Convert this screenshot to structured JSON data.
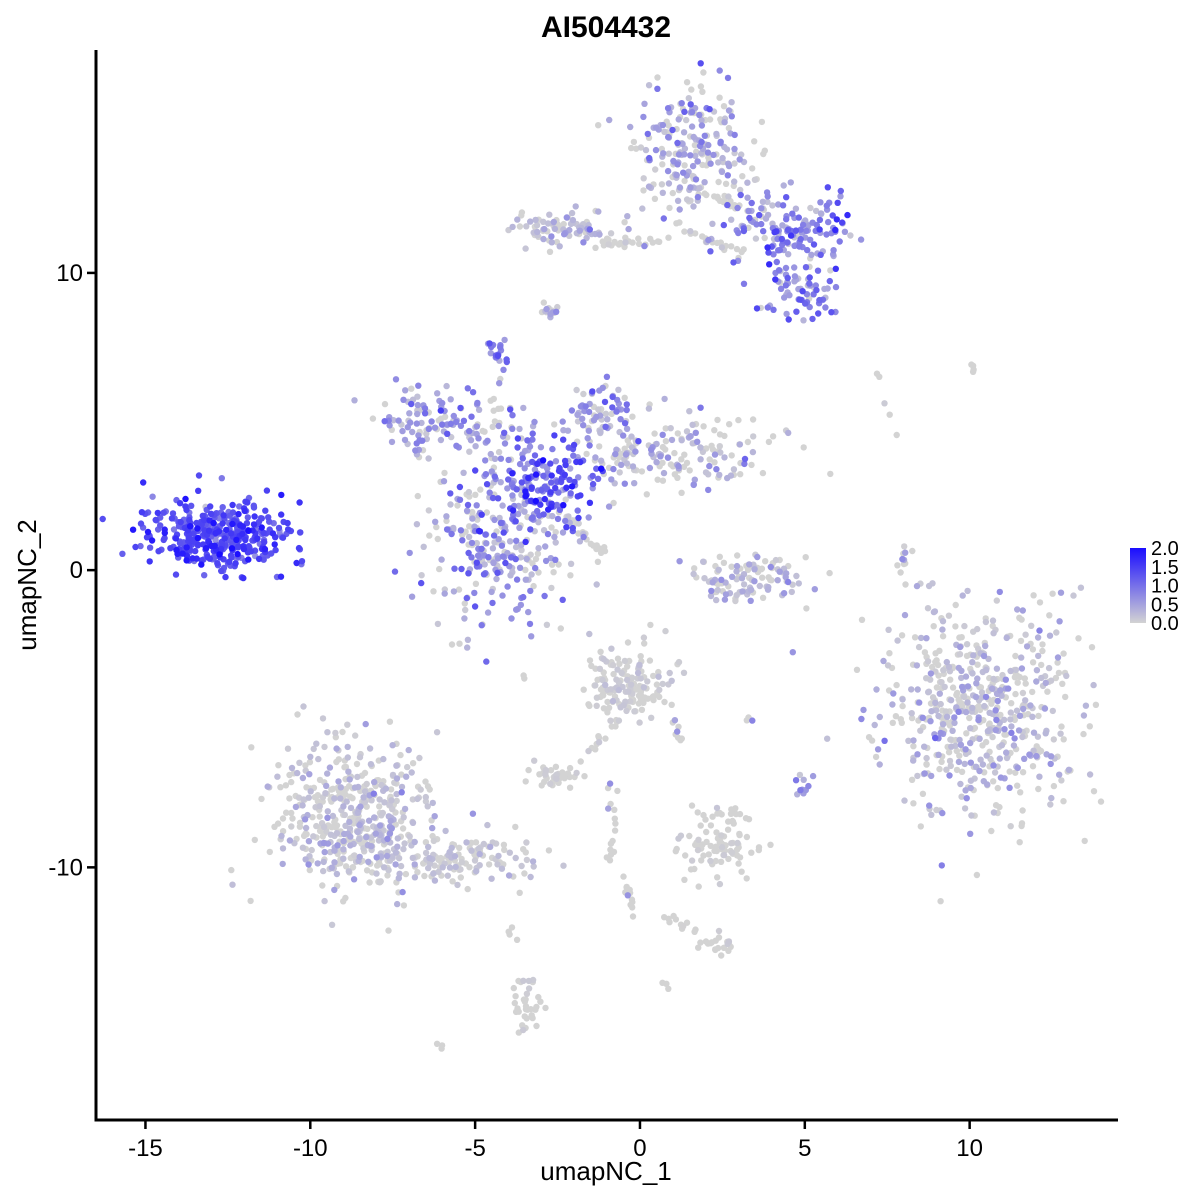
{
  "chart_data": {
    "type": "scatter",
    "title": "AI504432",
    "xlabel": "umapNC_1",
    "ylabel": "umapNC_2",
    "xlim": [
      -16.5,
      14.5
    ],
    "ylim": [
      -18.5,
      17.5
    ],
    "x_ticks": [
      -15,
      -10,
      -5,
      0,
      5,
      10
    ],
    "x_tick_labels": [
      "-15",
      "-10",
      "-5",
      "0",
      "5",
      "10"
    ],
    "y_ticks": [
      -10,
      0,
      10
    ],
    "y_tick_labels": [
      "-10",
      "0",
      "10"
    ],
    "grid": false,
    "legend_position": "right",
    "color_scale": {
      "low_color": "#d3d3d3",
      "high_color": "#1a0dff",
      "min": 0.0,
      "max": 2.0,
      "ticks": [
        2.0,
        1.5,
        1.0,
        0.5,
        0.0
      ],
      "tick_labels": [
        "2.0",
        "1.5",
        "1.0",
        "0.5",
        "0.0"
      ]
    },
    "clusters": [
      {
        "name": "c1",
        "cx": -12.8,
        "cy": 1.2,
        "sx": 1.1,
        "sy": 0.6,
        "n": 380,
        "expr_mean": 1.35,
        "expr_sd": 0.3
      },
      {
        "name": "c2",
        "cx": -4.2,
        "cy": 0.8,
        "sx": 1.2,
        "sy": 1.4,
        "n": 280,
        "expr_mean": 0.35,
        "expr_sd": 0.45
      },
      {
        "name": "c3",
        "cx": -2.9,
        "cy": 3.0,
        "sx": 0.9,
        "sy": 0.7,
        "n": 170,
        "expr_mean": 1.05,
        "expr_sd": 0.4
      },
      {
        "name": "c4",
        "cx": -6.2,
        "cy": 5.0,
        "sx": 1.2,
        "sy": 0.6,
        "n": 130,
        "expr_mean": 0.45,
        "expr_sd": 0.4
      },
      {
        "name": "c5",
        "cx": -1.0,
        "cy": 5.2,
        "sx": 0.6,
        "sy": 0.6,
        "n": 70,
        "expr_mean": 0.5,
        "expr_sd": 0.45
      },
      {
        "name": "c6",
        "cx": 1.3,
        "cy": 4.0,
        "sx": 1.6,
        "sy": 0.6,
        "n": 150,
        "expr_mean": 0.12,
        "expr_sd": 0.3
      },
      {
        "name": "c7",
        "cx": 1.6,
        "cy": 14.0,
        "sx": 0.9,
        "sy": 1.2,
        "n": 230,
        "expr_mean": 0.25,
        "expr_sd": 0.4
      },
      {
        "name": "c8",
        "cx": 4.6,
        "cy": 11.4,
        "sx": 0.9,
        "sy": 0.6,
        "n": 140,
        "expr_mean": 0.7,
        "expr_sd": 0.45
      },
      {
        "name": "c9",
        "cx": -2.5,
        "cy": 11.5,
        "sx": 0.8,
        "sy": 0.3,
        "n": 80,
        "expr_mean": 0.12,
        "expr_sd": 0.3
      },
      {
        "name": "c10",
        "cx": 4.8,
        "cy": 9.3,
        "sx": 0.6,
        "sy": 0.5,
        "n": 70,
        "expr_mean": 0.7,
        "expr_sd": 0.4
      },
      {
        "name": "c11",
        "cx": 3.2,
        "cy": -0.3,
        "sx": 0.9,
        "sy": 0.45,
        "n": 110,
        "expr_mean": 0.1,
        "expr_sd": 0.3
      },
      {
        "name": "c12",
        "cx": 10.4,
        "cy": -4.8,
        "sx": 1.5,
        "sy": 1.8,
        "n": 560,
        "expr_mean": 0.1,
        "expr_sd": 0.3
      },
      {
        "name": "c13",
        "cx": -8.6,
        "cy": -8.3,
        "sx": 1.2,
        "sy": 1.2,
        "n": 480,
        "expr_mean": 0.07,
        "expr_sd": 0.25
      },
      {
        "name": "c14",
        "cx": -5.5,
        "cy": -9.7,
        "sx": 1.2,
        "sy": 0.45,
        "n": 130,
        "expr_mean": 0.03,
        "expr_sd": 0.15
      },
      {
        "name": "c15",
        "cx": -0.4,
        "cy": -3.8,
        "sx": 0.6,
        "sy": 0.6,
        "n": 160,
        "expr_mean": 0.02,
        "expr_sd": 0.1
      },
      {
        "name": "c16",
        "cx": 2.3,
        "cy": -9.2,
        "sx": 0.6,
        "sy": 0.6,
        "n": 90,
        "expr_mean": 0.0,
        "expr_sd": 0.05
      },
      {
        "name": "c17",
        "cx": -2.5,
        "cy": -6.9,
        "sx": 0.4,
        "sy": 0.2,
        "n": 40,
        "expr_mean": 0.0,
        "expr_sd": 0.05
      },
      {
        "name": "c18",
        "cx": -3.4,
        "cy": -14.8,
        "sx": 0.25,
        "sy": 0.5,
        "n": 35,
        "expr_mean": 0.0,
        "expr_sd": 0.05
      },
      {
        "name": "c19",
        "cx": -4.3,
        "cy": 7.3,
        "sx": 0.15,
        "sy": 0.2,
        "n": 18,
        "expr_mean": 0.9,
        "expr_sd": 0.3
      },
      {
        "name": "c20",
        "cx": 2.3,
        "cy": -12.6,
        "sx": 0.3,
        "sy": 0.15,
        "n": 20,
        "expr_mean": 0.0,
        "expr_sd": 0.05
      },
      {
        "name": "c21",
        "cx": -2.7,
        "cy": 8.7,
        "sx": 0.15,
        "sy": 0.15,
        "n": 10,
        "expr_mean": 0.2,
        "expr_sd": 0.3
      },
      {
        "name": "c22",
        "cx": 5.0,
        "cy": -7.3,
        "sx": 0.15,
        "sy": 0.15,
        "n": 10,
        "expr_mean": 0.7,
        "expr_sd": 0.4
      }
    ],
    "streams": [
      {
        "from": [
          -4.5,
          3.0
        ],
        "to": [
          -4.3,
          6.8
        ],
        "n": 14
      },
      {
        "from": [
          -2.3,
          1.8
        ],
        "to": [
          -1.2,
          0.6
        ],
        "n": 22
      },
      {
        "from": [
          -0.9,
          3.6
        ],
        "to": [
          -0.2,
          4.3
        ],
        "n": 10
      },
      {
        "from": [
          -1.2,
          11.0
        ],
        "to": [
          0.9,
          11.0
        ],
        "n": 26
      },
      {
        "from": [
          1.3,
          11.5
        ],
        "to": [
          3.2,
          10.6
        ],
        "n": 22
      },
      {
        "from": [
          2.1,
          12.6
        ],
        "to": [
          3.9,
          12.0
        ],
        "n": 18
      },
      {
        "from": [
          -0.6,
          -5.0
        ],
        "to": [
          -1.6,
          -6.2
        ],
        "n": 12
      },
      {
        "from": [
          -0.8,
          -6.8
        ],
        "to": [
          -0.9,
          -10.0
        ],
        "n": 16
      },
      {
        "from": [
          -0.5,
          -10.2
        ],
        "to": [
          -0.1,
          -11.8
        ],
        "n": 12
      },
      {
        "from": [
          0.6,
          -11.6
        ],
        "to": [
          1.9,
          -12.2
        ],
        "n": 12
      },
      {
        "from": [
          1.0,
          -4.8
        ],
        "to": [
          1.3,
          -5.8
        ],
        "n": 8
      },
      {
        "from": [
          3.0,
          -7.8
        ],
        "to": [
          2.8,
          -8.6
        ],
        "n": 6
      },
      {
        "from": [
          -3.9,
          -12.0
        ],
        "to": [
          -3.8,
          -12.6
        ],
        "n": 4
      },
      {
        "from": [
          8.1,
          0.9
        ],
        "to": [
          7.8,
          -0.4
        ],
        "n": 10
      },
      {
        "from": [
          7.1,
          6.9
        ],
        "to": [
          7.8,
          4.6
        ],
        "n": 5
      },
      {
        "from": [
          9.9,
          7.0
        ],
        "to": [
          10.1,
          6.6
        ],
        "n": 4
      },
      {
        "from": [
          -2.8,
          9.2
        ],
        "to": [
          -2.7,
          8.5
        ],
        "n": 5
      },
      {
        "from": [
          -6.1,
          -16.0
        ],
        "to": [
          -6.0,
          -15.9
        ],
        "n": 3
      },
      {
        "from": [
          3.2,
          -4.9
        ],
        "to": [
          3.4,
          -4.9
        ],
        "n": 3
      },
      {
        "from": [
          0.7,
          -14.0
        ],
        "to": [
          0.8,
          -14.0
        ],
        "n": 3
      },
      {
        "from": [
          9.0,
          -4.2
        ],
        "to": [
          9.2,
          -5.4
        ],
        "n": 8
      },
      {
        "from": [
          -3.8,
          -3.5
        ],
        "to": [
          -3.5,
          -3.7
        ],
        "n": 2
      }
    ]
  }
}
